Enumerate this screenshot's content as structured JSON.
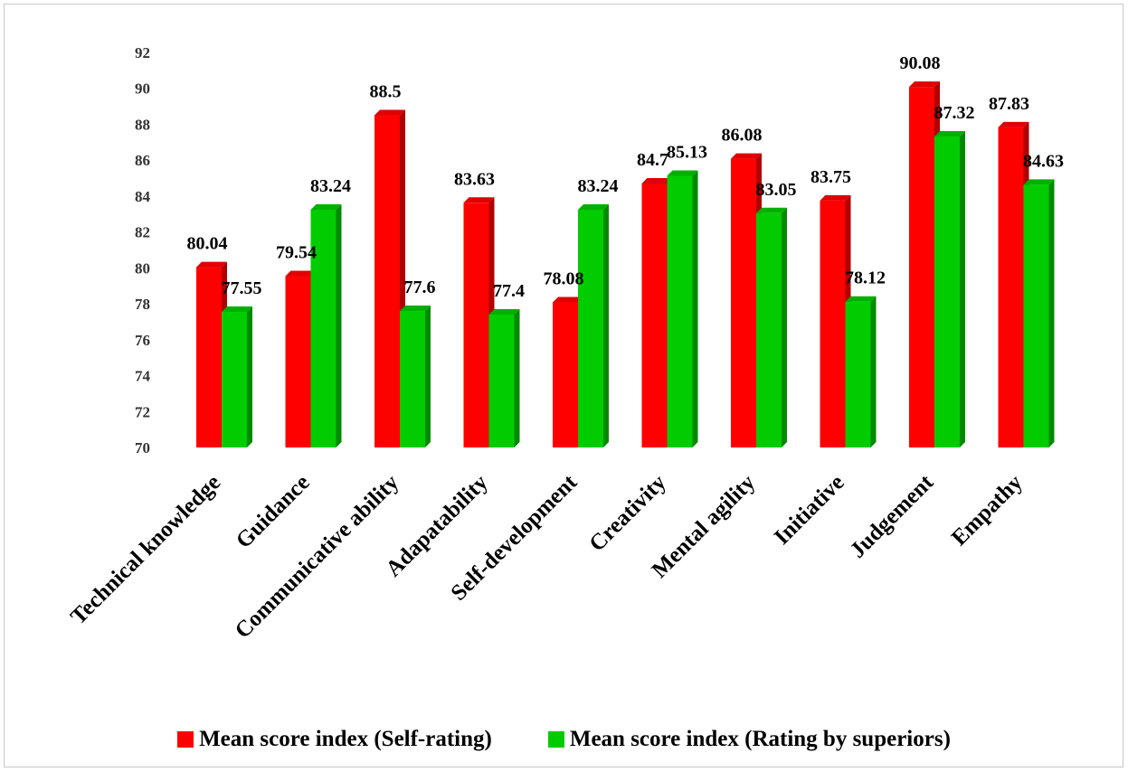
{
  "chart_data": {
    "type": "bar",
    "categories": [
      "Technical knowledge",
      "Guidance",
      "Communicative ability",
      "Adapatability",
      "Self-development",
      "Creativity",
      "Mental agility",
      "Initiative",
      "Judgement",
      "Empathy"
    ],
    "series": [
      {
        "name": "Mean score index (Self-rating)",
        "color": "#ff0000",
        "values": [
          80.04,
          79.54,
          88.5,
          83.63,
          78.08,
          84.7,
          86.08,
          83.75,
          90.08,
          87.83
        ],
        "labels": [
          "80.04",
          "79.54",
          "88.5",
          "83.63",
          "78.08",
          "84.7",
          "86.08",
          "83.75",
          "90.08",
          "87.83"
        ]
      },
      {
        "name": "Mean score index (Rating by superiors)",
        "color": "#00cc00",
        "values": [
          77.55,
          83.24,
          77.6,
          77.4,
          83.24,
          85.13,
          83.05,
          78.12,
          87.32,
          84.63
        ],
        "labels": [
          "77.55",
          "83.24",
          "77.6",
          "77.4",
          "83.24",
          "85.13",
          "83.05",
          "78.12",
          "87.32",
          "84.63"
        ]
      }
    ],
    "yticks": [
      "70",
      "72",
      "74",
      "76",
      "78",
      "80",
      "82",
      "84",
      "86",
      "88",
      "90",
      "92"
    ],
    "ylim": [
      70,
      92
    ],
    "grid": false,
    "legend_position": "bottom",
    "bar_style": "3d"
  }
}
